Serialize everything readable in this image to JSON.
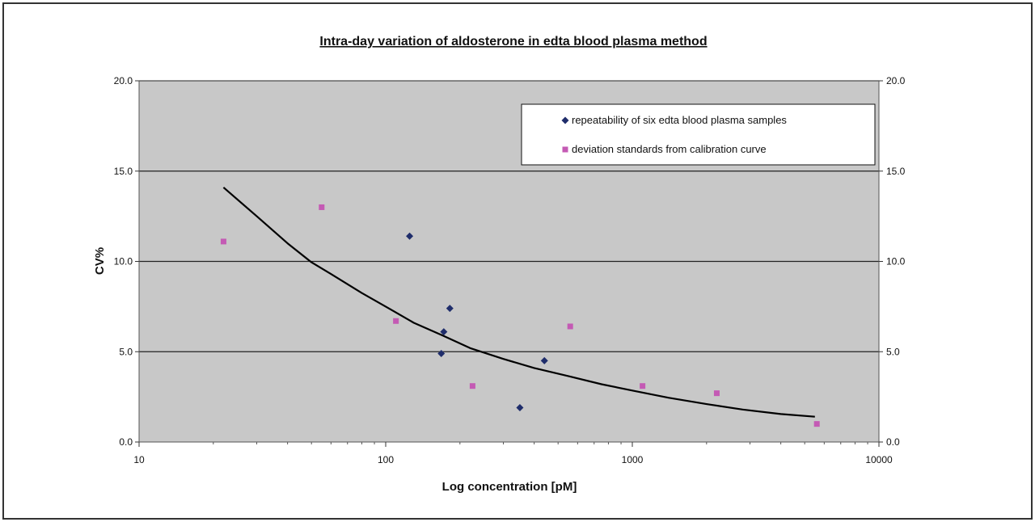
{
  "chart_data": {
    "type": "scatter",
    "title": "Intra-day variation of aldosterone in edta blood plasma method",
    "xlabel": "Log concentration [pM]",
    "ylabel": "CV%",
    "x_scale": "log",
    "xlim": [
      10,
      10000
    ],
    "ylim": [
      0,
      20
    ],
    "x_ticks": [
      10,
      100,
      1000,
      10000
    ],
    "x_tick_labels": [
      "10",
      "100",
      "1000",
      "10000"
    ],
    "y_ticks": [
      0,
      5,
      10,
      15,
      20
    ],
    "y_tick_labels": [
      "0.0",
      "5.0",
      "10.0",
      "15.0",
      "20.0"
    ],
    "y2_tick_labels": [
      "0.0",
      "5.0",
      "10.0",
      "15.0",
      "20.0"
    ],
    "grid": "horizontal",
    "plot_background": "#c8c8c8",
    "legend_position": "top-right",
    "series": [
      {
        "name": "repeatability of six edta blood plasma samples",
        "marker": "diamond",
        "color": "#1f2d6b",
        "x": [
          125,
          168,
          172,
          182,
          350,
          440
        ],
        "y": [
          11.4,
          4.9,
          6.1,
          7.4,
          1.9,
          4.5
        ]
      },
      {
        "name": "deviation standards from calibration curve",
        "marker": "square",
        "color": "#c45ab4",
        "x": [
          22,
          55,
          110,
          225,
          560,
          1100,
          2200,
          5600
        ],
        "y": [
          11.1,
          13.0,
          6.7,
          3.1,
          6.4,
          3.1,
          2.7,
          1.0
        ]
      }
    ],
    "trendline": {
      "color": "#000000",
      "x": [
        22,
        30,
        40,
        50,
        60,
        80,
        100,
        130,
        170,
        220,
        300,
        400,
        550,
        750,
        1000,
        1400,
        2000,
        2800,
        4000,
        5500
      ],
      "y": [
        14.1,
        12.5,
        11.0,
        9.95,
        9.3,
        8.25,
        7.5,
        6.6,
        5.9,
        5.2,
        4.6,
        4.1,
        3.65,
        3.2,
        2.85,
        2.45,
        2.1,
        1.8,
        1.55,
        1.4
      ]
    }
  }
}
